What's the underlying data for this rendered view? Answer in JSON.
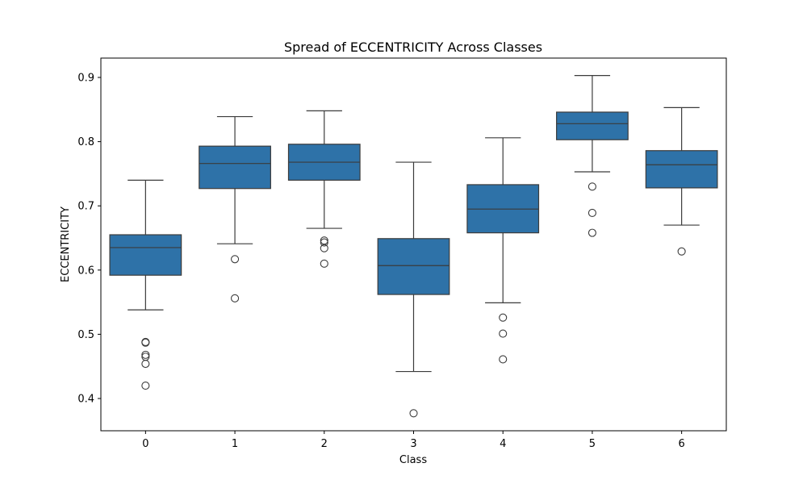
{
  "chart_data": {
    "type": "box",
    "title": "Spread of ECCENTRICITY Across Classes",
    "xlabel": "Class",
    "ylabel": "ECCENTRICITY",
    "ylim": [
      0.35,
      0.93
    ],
    "yticks": [
      "0.4",
      "0.5",
      "0.6",
      "0.7",
      "0.8",
      "0.9"
    ],
    "box_color": "#2e72a8",
    "line_color": "#3b3b3b",
    "grid": false,
    "boxes": [
      {
        "category": "0",
        "whisker_low": 0.538,
        "q1": 0.592,
        "median": 0.635,
        "q3": 0.655,
        "whisker_high": 0.74,
        "outliers": [
          0.488,
          0.487,
          0.468,
          0.465,
          0.454,
          0.42
        ]
      },
      {
        "category": "1",
        "whisker_low": 0.641,
        "q1": 0.727,
        "median": 0.766,
        "q3": 0.793,
        "whisker_high": 0.839,
        "outliers": [
          0.617,
          0.556
        ]
      },
      {
        "category": "2",
        "whisker_low": 0.665,
        "q1": 0.74,
        "median": 0.768,
        "q3": 0.796,
        "whisker_high": 0.848,
        "outliers": [
          0.646,
          0.643,
          0.634,
          0.61
        ]
      },
      {
        "category": "3",
        "whisker_low": 0.442,
        "q1": 0.562,
        "median": 0.607,
        "q3": 0.649,
        "whisker_high": 0.768,
        "outliers": [
          0.377
        ]
      },
      {
        "category": "4",
        "whisker_low": 0.549,
        "q1": 0.658,
        "median": 0.695,
        "q3": 0.733,
        "whisker_high": 0.806,
        "outliers": [
          0.526,
          0.501,
          0.461
        ]
      },
      {
        "category": "5",
        "whisker_low": 0.753,
        "q1": 0.803,
        "median": 0.828,
        "q3": 0.846,
        "whisker_high": 0.903,
        "outliers": [
          0.73,
          0.689,
          0.658
        ]
      },
      {
        "category": "6",
        "whisker_low": 0.67,
        "q1": 0.728,
        "median": 0.764,
        "q3": 0.786,
        "whisker_high": 0.853,
        "outliers": [
          0.629
        ]
      }
    ]
  }
}
